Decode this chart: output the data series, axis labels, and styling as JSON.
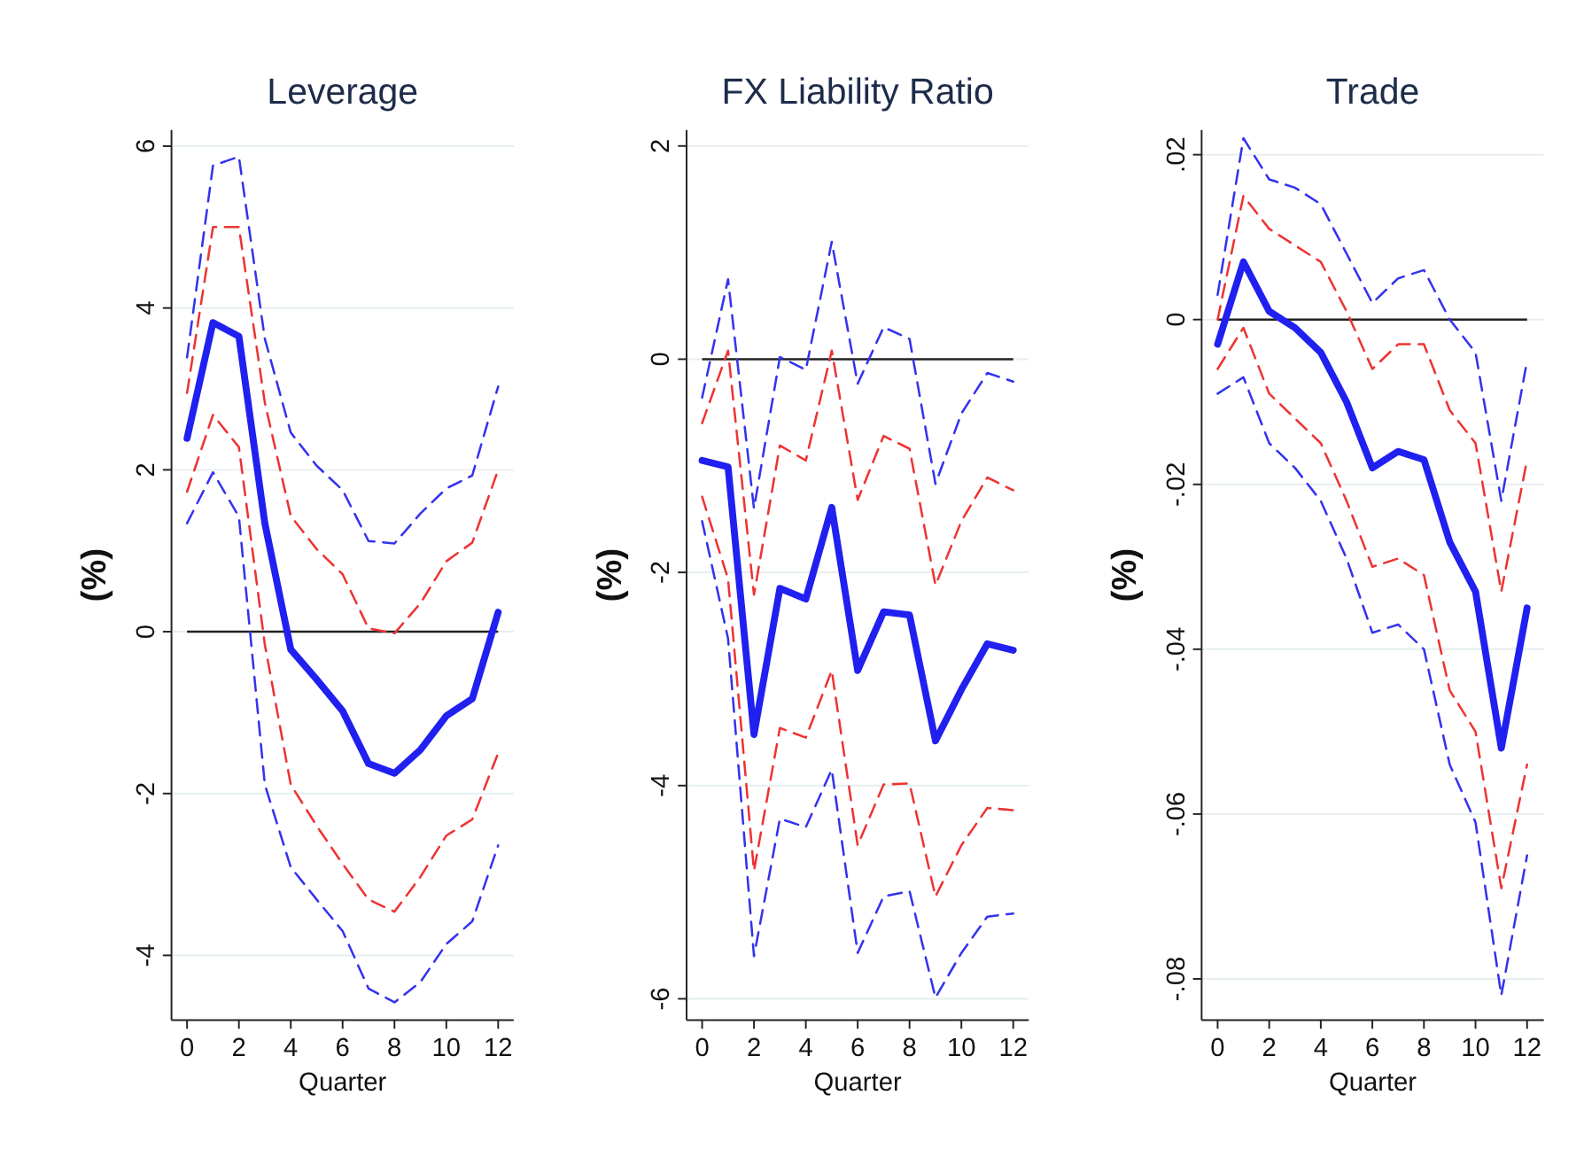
{
  "chart_data": [
    {
      "type": "line",
      "title": "Leverage",
      "xlabel": "Quarter",
      "ylabel": "(%)",
      "x": [
        0,
        1,
        2,
        3,
        4,
        5,
        6,
        7,
        8,
        9,
        10,
        11,
        12
      ],
      "xlim": [
        -0.6,
        12.6
      ],
      "xticks": [
        0,
        2,
        4,
        6,
        8,
        10,
        12
      ],
      "ylim": [
        -4.8,
        6.2
      ],
      "yticks": [
        -4,
        -2,
        0,
        2,
        4,
        6
      ],
      "grid": "y",
      "marker": "none",
      "ref_lines": [
        {
          "axis": "y",
          "value": 0,
          "color": "#222222"
        }
      ],
      "series": [
        {
          "color": "#3333ee",
          "line_style": "dashed",
          "values": [
            3.39,
            5.76,
            5.87,
            3.62,
            2.46,
            2.05,
            1.75,
            1.12,
            1.09,
            1.46,
            1.77,
            1.93,
            3.03
          ]
        },
        {
          "color": "#ee3333",
          "line_style": "dashed",
          "values": [
            2.95,
            5.0,
            5.0,
            2.83,
            1.43,
            1.02,
            0.71,
            0.04,
            -0.02,
            0.35,
            0.87,
            1.1,
            2.0
          ]
        },
        {
          "color": "#ee3333",
          "line_style": "dashed",
          "values": [
            1.73,
            2.68,
            2.28,
            -0.16,
            -1.89,
            -2.4,
            -2.87,
            -3.31,
            -3.46,
            -3.03,
            -2.52,
            -2.32,
            -1.5
          ]
        },
        {
          "color": "#3333ee",
          "line_style": "dashed",
          "values": [
            1.34,
            1.97,
            1.42,
            -1.89,
            -2.91,
            -3.31,
            -3.7,
            -4.41,
            -4.58,
            -4.33,
            -3.86,
            -3.58,
            -2.64
          ]
        },
        {
          "color": "#2020f0",
          "line_style": "solid",
          "values": [
            2.39,
            3.82,
            3.65,
            1.34,
            -0.22,
            -0.59,
            -0.98,
            -1.63,
            -1.75,
            -1.46,
            -1.04,
            -0.83,
            0.24
          ]
        }
      ]
    },
    {
      "type": "line",
      "title": "FX Liability Ratio",
      "xlabel": "Quarter",
      "ylabel": "(%)",
      "x": [
        0,
        1,
        2,
        3,
        4,
        5,
        6,
        7,
        8,
        9,
        10,
        11,
        12
      ],
      "xlim": [
        -0.6,
        12.6
      ],
      "xticks": [
        0,
        2,
        4,
        6,
        8,
        10,
        12
      ],
      "ylim": [
        -6.2,
        2.15
      ],
      "yticks": [
        -6,
        -4,
        -2,
        0,
        2
      ],
      "grid": "y",
      "marker": "none",
      "ref_lines": [
        {
          "axis": "y",
          "value": 0,
          "color": "#222222"
        }
      ],
      "series": [
        {
          "color": "#3333ee",
          "line_style": "dashed",
          "values": [
            -0.36,
            0.75,
            -1.4,
            0.02,
            -0.1,
            1.1,
            -0.23,
            0.3,
            0.19,
            -1.17,
            -0.51,
            -0.13,
            -0.21
          ]
        },
        {
          "color": "#ee3333",
          "line_style": "dashed",
          "values": [
            -0.6,
            0.08,
            -2.21,
            -0.81,
            -0.95,
            0.08,
            -1.32,
            -0.72,
            -0.84,
            -2.12,
            -1.52,
            -1.11,
            -1.23
          ]
        },
        {
          "color": "#ee3333",
          "line_style": "dashed",
          "values": [
            -1.29,
            -2.06,
            -4.8,
            -3.46,
            -3.55,
            -2.92,
            -4.56,
            -3.99,
            -3.98,
            -5.04,
            -4.56,
            -4.21,
            -4.23
          ]
        },
        {
          "color": "#3333ee",
          "line_style": "dashed",
          "values": [
            -1.52,
            -2.62,
            -5.6,
            -4.31,
            -4.39,
            -3.85,
            -5.57,
            -5.04,
            -4.99,
            -5.99,
            -5.57,
            -5.23,
            -5.2
          ]
        },
        {
          "color": "#2020f0",
          "line_style": "solid",
          "values": [
            -0.95,
            -1.01,
            -3.52,
            -2.15,
            -2.25,
            -1.39,
            -2.92,
            -2.37,
            -2.4,
            -3.58,
            -3.1,
            -2.67,
            -2.73
          ]
        }
      ]
    },
    {
      "type": "line",
      "title": "Trade",
      "xlabel": "Quarter",
      "ylabel": "(%)",
      "x": [
        0,
        1,
        2,
        3,
        4,
        5,
        6,
        7,
        8,
        9,
        10,
        11,
        12
      ],
      "xlim": [
        -0.62,
        12.65
      ],
      "xticks": [
        0,
        2,
        4,
        6,
        8,
        10,
        12
      ],
      "ylim": [
        -0.085,
        0.023
      ],
      "yticks": [
        {
          "value": -0.08,
          "label": "-.08"
        },
        {
          "value": -0.06,
          "label": "-.06"
        },
        {
          "value": -0.04,
          "label": "-.04"
        },
        {
          "value": -0.02,
          "label": "-.02"
        },
        0,
        {
          "value": 0.02,
          "label": ".02"
        }
      ],
      "grid": "y",
      "marker": "none",
      "ref_lines": [
        {
          "axis": "y",
          "value": 0,
          "color": "#222222"
        }
      ],
      "series": [
        {
          "color": "#3333ee",
          "line_style": "dashed",
          "values": [
            0.003,
            0.022,
            0.017,
            0.016,
            0.014,
            0.008,
            0.002,
            0.005,
            0.006,
            0.0,
            -0.004,
            -0.022,
            -0.005
          ]
        },
        {
          "color": "#ee3333",
          "line_style": "dashed",
          "values": [
            0.0,
            0.015,
            0.011,
            0.009,
            0.007,
            0.001,
            -0.006,
            -0.003,
            -0.003,
            -0.011,
            -0.015,
            -0.033,
            -0.017
          ]
        },
        {
          "color": "#ee3333",
          "line_style": "dashed",
          "values": [
            -0.006,
            -0.001,
            -0.009,
            -0.012,
            -0.015,
            -0.022,
            -0.03,
            -0.029,
            -0.031,
            -0.045,
            -0.05,
            -0.069,
            -0.054
          ]
        },
        {
          "color": "#3333ee",
          "line_style": "dashed",
          "values": [
            -0.009,
            -0.007,
            -0.015,
            -0.018,
            -0.022,
            -0.029,
            -0.038,
            -0.037,
            -0.04,
            -0.054,
            -0.061,
            -0.082,
            -0.065
          ]
        },
        {
          "color": "#2020f0",
          "line_style": "solid",
          "values": [
            -0.003,
            0.007,
            0.001,
            -0.001,
            -0.004,
            -0.01,
            -0.018,
            -0.016,
            -0.017,
            -0.027,
            -0.033,
            -0.052,
            -0.035
          ]
        }
      ]
    }
  ]
}
